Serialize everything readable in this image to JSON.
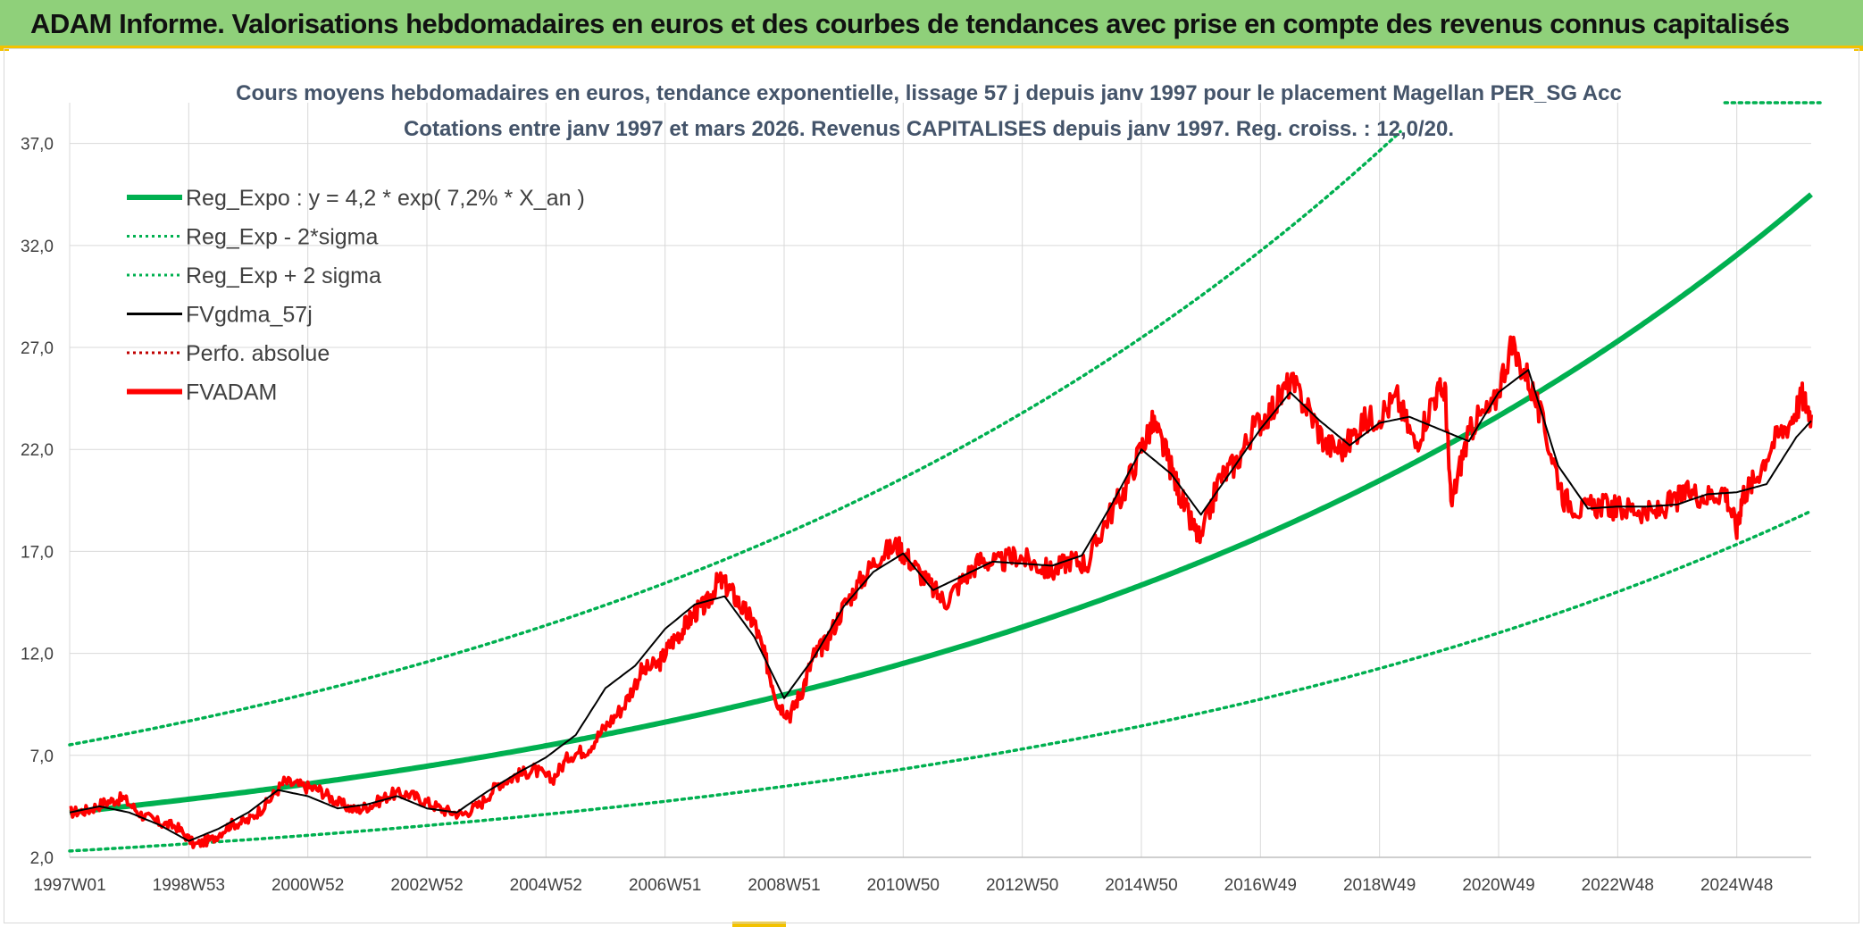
{
  "banner": {
    "title": "ADAM Informe. Valorisations hebdomadaires en euros et des courbes de tendances avec prise en compte des revenus connus capitalisés"
  },
  "colors": {
    "banner_bg": "#8fd07a",
    "trend": "#00b050",
    "price": "#ff0000",
    "ma": "#000000",
    "perf": "#c00000"
  },
  "chart_data": {
    "type": "line",
    "title": "Cours moyens hebdomadaires en euros, tendance exponentielle, lissage 57 j depuis janv 1997 pour le placement Magellan PER_SG Acc",
    "subtitle": "Cotations entre janv 1997 et mars 2026. Revenus CAPITALISES depuis janv 1997. Reg. croiss. : 12,0/20.",
    "xlabel": "",
    "ylabel": "",
    "ylim": [
      2.0,
      39.0
    ],
    "yticks": [
      "2,0",
      "7,0",
      "12,0",
      "17,0",
      "22,0",
      "27,0",
      "32,0",
      "37,0"
    ],
    "ytick_values": [
      2,
      7,
      12,
      17,
      22,
      27,
      32,
      37
    ],
    "x_range": [
      1997.0,
      2026.25
    ],
    "xticks": [
      "1997W01",
      "1998W53",
      "2000W52",
      "2002W52",
      "2004W52",
      "2006W51",
      "2008W51",
      "2010W50",
      "2012W50",
      "2014W50",
      "2016W49",
      "2018W49",
      "2020W49",
      "2022W48",
      "2024W48"
    ],
    "xtick_years": [
      1997.0,
      1999.0,
      2001.0,
      2003.0,
      2005.0,
      2007.0,
      2009.0,
      2011.0,
      2013.0,
      2015.0,
      2017.0,
      2019.0,
      2021.0,
      2023.0,
      2025.0
    ],
    "legend": {
      "position": "top-left",
      "entries": [
        {
          "label": "Reg_Expo : y = 4,2 * exp( 7,2% *  X_an )",
          "style": "solid-thick",
          "color": "#00b050"
        },
        {
          "label": "Reg_Exp - 2*sigma",
          "style": "dotted",
          "color": "#00b050"
        },
        {
          "label": "Reg_Exp + 2 sigma",
          "style": "dotted",
          "color": "#00b050"
        },
        {
          "label": "FVgdma_57j",
          "style": "solid",
          "color": "#000000"
        },
        {
          "label": "Perfo. absolue",
          "style": "dotted",
          "color": "#c00000"
        },
        {
          "label": "FVADAM",
          "style": "solid-thick",
          "color": "#ff0000"
        }
      ]
    },
    "regression": {
      "a": 4.2,
      "rate": 0.072,
      "sigma_lower_factor": 0.55,
      "sigma_upper_factor": 1.79,
      "upper_cap": 39.0
    },
    "series": [
      {
        "name": "FVADAM",
        "x": [
          1997.0,
          1997.3,
          1997.6,
          1997.9,
          1998.2,
          1998.5,
          1998.8,
          1999.1,
          1999.4,
          1999.7,
          2000.0,
          2000.3,
          2000.6,
          2000.9,
          2001.2,
          2001.5,
          2001.8,
          2002.1,
          2002.4,
          2002.7,
          2003.0,
          2003.3,
          2003.6,
          2003.9,
          2004.2,
          2004.5,
          2004.8,
          2005.1,
          2005.4,
          2005.7,
          2006.0,
          2006.3,
          2006.6,
          2006.9,
          2007.1,
          2007.3,
          2007.5,
          2007.7,
          2007.9,
          2008.1,
          2008.3,
          2008.5,
          2008.7,
          2008.9,
          2009.1,
          2009.3,
          2009.5,
          2009.7,
          2010.0,
          2010.3,
          2010.6,
          2010.9,
          2011.1,
          2011.4,
          2011.7,
          2012.0,
          2012.3,
          2012.6,
          2012.9,
          2013.2,
          2013.5,
          2013.8,
          2014.1,
          2014.4,
          2014.7,
          2015.0,
          2015.2,
          2015.4,
          2015.6,
          2015.8,
          2016.0,
          2016.3,
          2016.6,
          2016.9,
          2017.2,
          2017.5,
          2017.8,
          2018.1,
          2018.4,
          2018.7,
          2019.0,
          2019.3,
          2019.6,
          2019.9,
          2020.1,
          2020.2,
          2020.4,
          2020.6,
          2020.9,
          2021.2,
          2021.5,
          2021.8,
          2022.1,
          2022.4,
          2022.7,
          2023.0,
          2023.3,
          2023.6,
          2023.9,
          2024.2,
          2024.5,
          2024.8,
          2025.0,
          2025.1,
          2025.3,
          2025.6,
          2025.9,
          2026.1,
          2026.25
        ],
        "values": [
          4.2,
          4.3,
          4.7,
          4.9,
          4.1,
          3.7,
          3.5,
          2.6,
          2.9,
          3.6,
          3.8,
          4.6,
          5.7,
          5.5,
          5.3,
          4.7,
          4.3,
          4.6,
          5.1,
          5.1,
          4.7,
          4.3,
          4.1,
          4.6,
          5.6,
          6.0,
          6.3,
          5.8,
          7.0,
          7.3,
          8.4,
          9.4,
          11.1,
          11.5,
          12.5,
          13.2,
          14.0,
          14.4,
          15.6,
          15.1,
          14.2,
          13.5,
          11.6,
          9.5,
          9.0,
          10.2,
          11.9,
          12.5,
          14.3,
          15.6,
          16.8,
          17.3,
          16.6,
          15.5,
          14.5,
          15.6,
          16.6,
          16.4,
          16.8,
          16.4,
          16.0,
          16.6,
          16.4,
          18.5,
          19.9,
          22.1,
          23.3,
          21.9,
          20.2,
          18.6,
          17.5,
          20.5,
          21.4,
          23.1,
          24.0,
          25.3,
          24.0,
          22.2,
          22.0,
          23.3,
          23.7,
          24.5,
          22.2,
          24.5,
          25.0,
          19.2,
          21.8,
          23.4,
          24.0,
          27.0,
          25.5,
          22.7,
          19.6,
          19.0,
          19.3,
          19.1,
          19.1,
          18.8,
          19.4,
          19.9,
          19.7,
          20.0,
          18.1,
          19.8,
          20.5,
          22.3,
          23.4,
          24.6,
          23.7
        ]
      },
      {
        "name": "FVgdma_57j",
        "x": [
          1997.0,
          1997.5,
          1998.0,
          1998.5,
          1999.0,
          1999.5,
          2000.0,
          2000.5,
          2001.0,
          2001.5,
          2002.0,
          2002.5,
          2003.0,
          2003.5,
          2004.0,
          2004.5,
          2005.0,
          2005.5,
          2006.0,
          2006.5,
          2007.0,
          2007.5,
          2008.0,
          2008.5,
          2009.0,
          2009.5,
          2010.0,
          2010.5,
          2011.0,
          2011.5,
          2012.0,
          2012.5,
          2013.0,
          2013.5,
          2014.0,
          2014.5,
          2015.0,
          2015.5,
          2016.0,
          2016.5,
          2017.0,
          2017.5,
          2018.0,
          2018.5,
          2019.0,
          2019.5,
          2020.0,
          2020.5,
          2021.0,
          2021.5,
          2022.0,
          2022.5,
          2023.0,
          2023.5,
          2024.0,
          2024.5,
          2025.0,
          2025.5,
          2026.0,
          2026.25
        ],
        "values": [
          4.2,
          4.5,
          4.2,
          3.6,
          2.8,
          3.4,
          4.2,
          5.3,
          5.0,
          4.4,
          4.6,
          5.0,
          4.4,
          4.2,
          5.2,
          6.1,
          6.9,
          8.0,
          10.3,
          11.4,
          13.2,
          14.4,
          14.8,
          12.8,
          9.8,
          11.8,
          14.3,
          16.0,
          16.9,
          15.1,
          15.8,
          16.5,
          16.4,
          16.3,
          16.8,
          19.3,
          22.0,
          20.8,
          18.8,
          20.9,
          23.0,
          24.8,
          23.4,
          22.2,
          23.3,
          23.6,
          23.0,
          22.4,
          24.8,
          25.9,
          21.2,
          19.1,
          19.2,
          19.2,
          19.3,
          19.8,
          19.9,
          20.3,
          22.6,
          23.4
        ]
      }
    ]
  }
}
